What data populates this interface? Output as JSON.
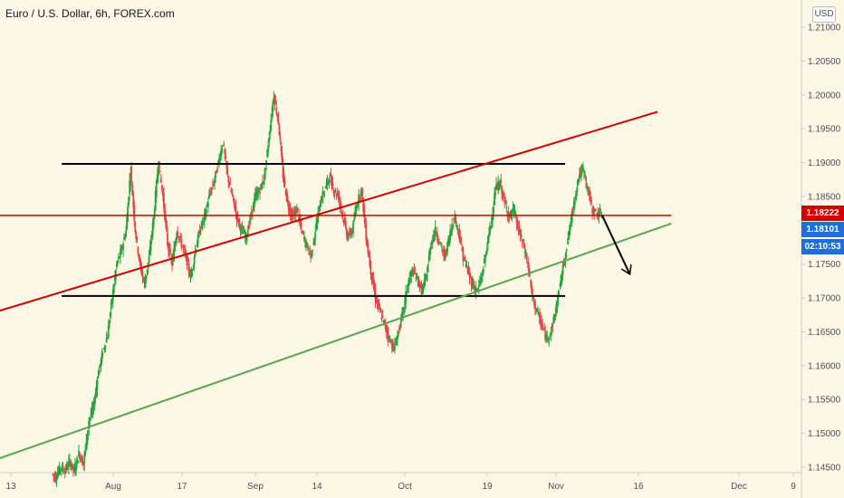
{
  "title": "Euro / U.S. Dollar, 6h, FOREX.com",
  "currency_button": "USD",
  "colors": {
    "up": "#26a33a",
    "down": "#e04848",
    "background": "#fdf7e6",
    "resistance_line": "#d50000",
    "support_line": "#5aa64f"
  },
  "chart_data": {
    "type": "candlestick",
    "symbol": "Euro / U.S. Dollar",
    "interval": "6h",
    "exchange": "FOREX.com",
    "ylim": [
      1.145,
      1.21
    ],
    "y_ticks": [
      "1.14500",
      "1.15000",
      "1.15500",
      "1.16000",
      "1.16500",
      "1.17000",
      "1.17500",
      "1.18000",
      "1.18500",
      "1.19000",
      "1.19500",
      "1.20000",
      "1.20500",
      "1.21000"
    ],
    "x_ticks": [
      "13",
      "Aug",
      "17",
      "Sep",
      "14",
      "Oct",
      "19",
      "Nov",
      "16",
      "Dec",
      "9"
    ],
    "price_labels": [
      {
        "value": "1.18222",
        "color": "#d50000"
      },
      {
        "value": "1.18101",
        "color": "#1e6fd9"
      },
      {
        "value": "02:10:53",
        "color": "#1e6fd9"
      }
    ],
    "price_path": [
      [
        0.0,
        1.144
      ],
      [
        0.4,
        1.1435
      ],
      [
        0.9,
        1.145
      ],
      [
        1.4,
        1.1445
      ],
      [
        1.9,
        1.1458
      ],
      [
        2.4,
        1.1445
      ],
      [
        2.9,
        1.147
      ],
      [
        3.4,
        1.1455
      ],
      [
        4.0,
        1.152
      ],
      [
        4.5,
        1.154
      ],
      [
        5.0,
        1.159
      ],
      [
        5.5,
        1.162
      ],
      [
        6.0,
        1.1645
      ],
      [
        6.5,
        1.17
      ],
      [
        7.0,
        1.175
      ],
      [
        7.5,
        1.177
      ],
      [
        8.0,
        1.18
      ],
      [
        8.5,
        1.189
      ],
      [
        9.0,
        1.18
      ],
      [
        9.5,
        1.175
      ],
      [
        10.0,
        1.172
      ],
      [
        10.5,
        1.176
      ],
      [
        11.0,
        1.182
      ],
      [
        11.5,
        1.19
      ],
      [
        12.0,
        1.185
      ],
      [
        12.5,
        1.178
      ],
      [
        13.0,
        1.175
      ],
      [
        13.5,
        1.18
      ],
      [
        14.0,
        1.178
      ],
      [
        14.5,
        1.176
      ],
      [
        15.0,
        1.173
      ],
      [
        15.5,
        1.177
      ],
      [
        16.0,
        1.18
      ],
      [
        16.5,
        1.182
      ],
      [
        17.0,
        1.185
      ],
      [
        17.5,
        1.187
      ],
      [
        18.0,
        1.19
      ],
      [
        18.5,
        1.193
      ],
      [
        19.0,
        1.188
      ],
      [
        19.5,
        1.185
      ],
      [
        20.0,
        1.182
      ],
      [
        20.5,
        1.18
      ],
      [
        21.0,
        1.179
      ],
      [
        21.5,
        1.182
      ],
      [
        22.0,
        1.185
      ],
      [
        22.5,
        1.186
      ],
      [
        23.0,
        1.188
      ],
      [
        23.5,
        1.194
      ],
      [
        24.0,
        1.2
      ],
      [
        24.5,
        1.196
      ],
      [
        25.0,
        1.188
      ],
      [
        25.5,
        1.184
      ],
      [
        26.0,
        1.182
      ],
      [
        26.5,
        1.183
      ],
      [
        27.0,
        1.18
      ],
      [
        27.5,
        1.178
      ],
      [
        28.0,
        1.176
      ],
      [
        28.5,
        1.18
      ],
      [
        29.0,
        1.184
      ],
      [
        29.5,
        1.186
      ],
      [
        30.0,
        1.188
      ],
      [
        30.5,
        1.186
      ],
      [
        31.0,
        1.185
      ],
      [
        31.5,
        1.182
      ],
      [
        32.0,
        1.179
      ],
      [
        32.5,
        1.18
      ],
      [
        33.0,
        1.184
      ],
      [
        33.5,
        1.186
      ],
      [
        34.0,
        1.179
      ],
      [
        34.5,
        1.174
      ],
      [
        35.0,
        1.17
      ],
      [
        35.5,
        1.168
      ],
      [
        36.0,
        1.166
      ],
      [
        36.5,
        1.164
      ],
      [
        37.0,
        1.1625
      ],
      [
        37.5,
        1.165
      ],
      [
        38.0,
        1.168
      ],
      [
        38.5,
        1.172
      ],
      [
        39.0,
        1.174
      ],
      [
        39.5,
        1.173
      ],
      [
        40.0,
        1.171
      ],
      [
        40.5,
        1.173
      ],
      [
        41.0,
        1.178
      ],
      [
        41.5,
        1.18
      ],
      [
        42.0,
        1.178
      ],
      [
        42.5,
        1.176
      ],
      [
        43.0,
        1.179
      ],
      [
        43.5,
        1.182
      ],
      [
        44.0,
        1.18
      ],
      [
        44.5,
        1.176
      ],
      [
        45.0,
        1.174
      ],
      [
        45.5,
        1.172
      ],
      [
        46.0,
        1.171
      ],
      [
        46.5,
        1.173
      ],
      [
        47.0,
        1.177
      ],
      [
        47.5,
        1.181
      ],
      [
        48.0,
        1.186
      ],
      [
        48.5,
        1.187
      ],
      [
        49.0,
        1.184
      ],
      [
        49.5,
        1.182
      ],
      [
        50.0,
        1.183
      ],
      [
        50.5,
        1.18
      ],
      [
        51.0,
        1.178
      ],
      [
        51.5,
        1.175
      ],
      [
        52.0,
        1.17
      ],
      [
        52.5,
        1.168
      ],
      [
        53.0,
        1.166
      ],
      [
        53.5,
        1.164
      ],
      [
        54.0,
        1.165
      ],
      [
        54.5,
        1.168
      ],
      [
        55.0,
        1.172
      ],
      [
        55.5,
        1.176
      ],
      [
        56.0,
        1.18
      ],
      [
        56.5,
        1.184
      ],
      [
        57.0,
        1.188
      ],
      [
        57.5,
        1.189
      ],
      [
        58.0,
        1.186
      ],
      [
        58.5,
        1.183
      ],
      [
        59.0,
        1.1825
      ],
      [
        59.5,
        1.1822
      ]
    ],
    "annotations": [
      {
        "name": "resistance-horizontal",
        "color": "#000000",
        "y1": 1.1898,
        "y2": 1.1898,
        "x1": 1.0,
        "x2": 55.5
      },
      {
        "name": "support-horizontal",
        "color": "#000000",
        "y1": 1.1703,
        "y2": 1.1703,
        "x1": 1.0,
        "x2": 55.5
      },
      {
        "name": "channel-upper-trendline",
        "color": "#d50000",
        "y1": 1.168,
        "y2": 1.1975,
        "x1": -6.0,
        "x2": 65.5
      },
      {
        "name": "channel-lower-trendline",
        "color": "#5aa64f",
        "y1": 1.1462,
        "y2": 1.181,
        "x1": -6.0,
        "x2": 67.0
      },
      {
        "name": "current-price-level",
        "color": "#d50000",
        "y1": 1.1822,
        "y2": 1.1822,
        "x1": -6.0,
        "x2": 67.0
      },
      {
        "name": "projection-arrow",
        "color": "#000000",
        "y1": 1.1822,
        "y2": 1.1735,
        "x1": 59.5,
        "x2": 62.5
      }
    ]
  }
}
